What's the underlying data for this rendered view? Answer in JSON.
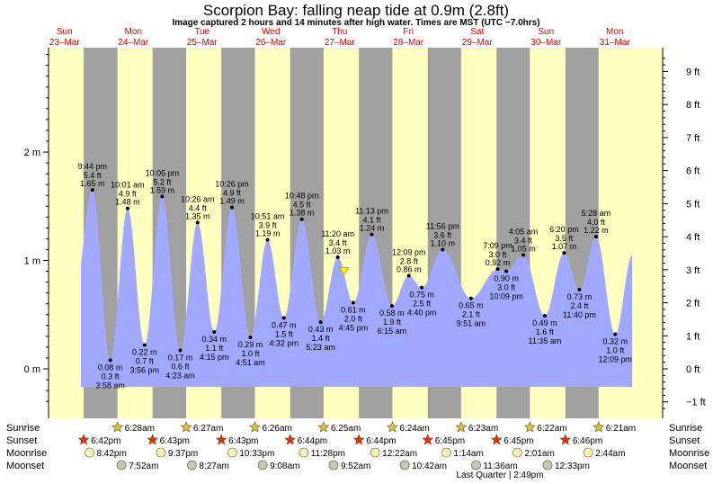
{
  "title": "Scorpion Bay: falling  neap tide at 0.9m (2.8ft)",
  "subtitle": "Image captured 2 hours and 14 minutes after high water. Times are MST (UTC −7.0hrs)",
  "colors": {
    "day": "#ffffc0",
    "night": "#a0a0a0",
    "tide": "#a0a8ff",
    "marker": "#ffff00",
    "day_label": "#e00000"
  },
  "days": [
    {
      "name": "Sun",
      "date": "23–Mar"
    },
    {
      "name": "Mon",
      "date": "24–Mar"
    },
    {
      "name": "Tue",
      "date": "25–Mar"
    },
    {
      "name": "Wed",
      "date": "26–Mar"
    },
    {
      "name": "Thu",
      "date": "27–Mar"
    },
    {
      "name": "Fri",
      "date": "28–Mar"
    },
    {
      "name": "Sat",
      "date": "29–Mar"
    },
    {
      "name": "Sun",
      "date": "30–Mar"
    },
    {
      "name": "Mon",
      "date": "31–Mar"
    }
  ],
  "chart_data": {
    "type": "area",
    "ylabel_left": "m",
    "ylabel_right": "ft",
    "left_ticks": [
      {
        "v": 0,
        "label": "0 m"
      },
      {
        "v": 1,
        "label": "1 m"
      },
      {
        "v": 2,
        "label": "2 m"
      }
    ],
    "right_ticks": [
      {
        "v": -1,
        "label": "−1 ft"
      },
      {
        "v": 0,
        "label": "0 ft"
      },
      {
        "v": 1,
        "label": "1 ft"
      },
      {
        "v": 2,
        "label": "2 ft"
      },
      {
        "v": 3,
        "label": "3 ft"
      },
      {
        "v": 4,
        "label": "4 ft"
      },
      {
        "v": 5,
        "label": "5 ft"
      },
      {
        "v": 6,
        "label": "6 ft"
      },
      {
        "v": 7,
        "label": "7 ft"
      },
      {
        "v": 8,
        "label": "8 ft"
      },
      {
        "v": 9,
        "label": "9 ft"
      }
    ],
    "ylim_m": [
      -0.35,
      3.0
    ],
    "now": {
      "t": "27–Mar 1:34pm",
      "m": 0.9
    },
    "extremes": [
      {
        "t": "23–Mar 9:44pm",
        "m": 1.65,
        "time": "9:44 pm",
        "ft": "5.4 ft",
        "label_m": "1.65 m",
        "type": "high"
      },
      {
        "t": "24–Mar 3:58am",
        "m": 0.08,
        "time": "3:58 am",
        "ft": "0.3 ft",
        "label_m": "0.08 m",
        "type": "low"
      },
      {
        "t": "24–Mar 10:01am",
        "m": 1.48,
        "time": "10:01 am",
        "ft": "4.9 ft",
        "label_m": "1.48 m",
        "type": "high"
      },
      {
        "t": "24–Mar 3:56pm",
        "m": 0.22,
        "time": "3:56 pm",
        "ft": "0.7 ft",
        "label_m": "0.22 m",
        "type": "low"
      },
      {
        "t": "24–Mar 10:05pm",
        "m": 1.59,
        "time": "10:05 pm",
        "ft": "5.2 ft",
        "label_m": "1.59 m",
        "type": "high"
      },
      {
        "t": "25–Mar 4:23am",
        "m": 0.17,
        "time": "4:23 am",
        "ft": "0.6 ft",
        "label_m": "0.17 m",
        "type": "low"
      },
      {
        "t": "25–Mar 10:26am",
        "m": 1.35,
        "time": "10:26 am",
        "ft": "4.4 ft",
        "label_m": "1.35 m",
        "type": "high"
      },
      {
        "t": "25–Mar 4:15pm",
        "m": 0.34,
        "time": "4:15 pm",
        "ft": "1.1 ft",
        "label_m": "0.34 m",
        "type": "low"
      },
      {
        "t": "25–Mar 10:26pm",
        "m": 1.49,
        "time": "10:26 pm",
        "ft": "4.9 ft",
        "label_m": "1.49 m",
        "type": "high"
      },
      {
        "t": "26–Mar 4:51am",
        "m": 0.29,
        "time": "4:51 am",
        "ft": "1.0 ft",
        "label_m": "0.29 m",
        "type": "low"
      },
      {
        "t": "26–Mar 10:51am",
        "m": 1.19,
        "time": "10:51 am",
        "ft": "3.9 ft",
        "label_m": "1.19 m",
        "type": "high"
      },
      {
        "t": "26–Mar 4:32pm",
        "m": 0.47,
        "time": "4:32 pm",
        "ft": "1.5 ft",
        "label_m": "0.47 m",
        "type": "low"
      },
      {
        "t": "26–Mar 10:48pm",
        "m": 1.38,
        "time": "10:48 pm",
        "ft": "4.5 ft",
        "label_m": "1.38 m",
        "type": "high"
      },
      {
        "t": "27–Mar 5:23am",
        "m": 0.43,
        "time": "5:23 am",
        "ft": "1.4 ft",
        "label_m": "0.43 m",
        "type": "low"
      },
      {
        "t": "27–Mar 11:20am",
        "m": 1.03,
        "time": "11:20 am",
        "ft": "3.4 ft",
        "label_m": "1.03 m",
        "type": "high"
      },
      {
        "t": "27–Mar 4:45pm",
        "m": 0.61,
        "time": "4:45 pm",
        "ft": "2.0 ft",
        "label_m": "0.61 m",
        "type": "low"
      },
      {
        "t": "27–Mar 11:13pm",
        "m": 1.24,
        "time": "11:13 pm",
        "ft": "4.1 ft",
        "label_m": "1.24 m",
        "type": "high"
      },
      {
        "t": "28–Mar 6:15am",
        "m": 0.58,
        "time": "6:15 am",
        "ft": "1.9 ft",
        "label_m": "0.58 m",
        "type": "low"
      },
      {
        "t": "28–Mar 12:09pm",
        "m": 0.86,
        "time": "12:09 pm",
        "ft": "2.8 ft",
        "label_m": "0.86 m",
        "type": "high"
      },
      {
        "t": "28–Mar 4:40pm",
        "m": 0.75,
        "time": "4:40 pm",
        "ft": "2.5 ft",
        "label_m": "0.75 m",
        "type": "low"
      },
      {
        "t": "28–Mar 11:56pm",
        "m": 1.1,
        "time": "11:56 pm",
        "ft": "3.6 ft",
        "label_m": "1.10 m",
        "type": "high"
      },
      {
        "t": "29–Mar 9:51am",
        "m": 0.65,
        "time": "9:51 am",
        "ft": "2.1 ft",
        "label_m": "0.65 m",
        "type": "low"
      },
      {
        "t": "29–Mar 7:09pm",
        "m": 0.92,
        "time": "7:09 pm",
        "ft": "3.0 ft",
        "label_m": "0.92 m",
        "type": "high"
      },
      {
        "t": "29–Mar 10:09pm",
        "m": 0.9,
        "time": "10:09 pm",
        "ft": "3.0 ft",
        "label_m": "0.90 m",
        "type": "low"
      },
      {
        "t": "30–Mar 4:05am",
        "m": 1.05,
        "time": "4:05 am",
        "ft": "3.4 ft",
        "label_m": "1.05 m",
        "type": "high"
      },
      {
        "t": "30–Mar 11:35am",
        "m": 0.49,
        "time": "11:35 am",
        "ft": "1.6 ft",
        "label_m": "0.49 m",
        "type": "low"
      },
      {
        "t": "30–Mar 6:20pm",
        "m": 1.07,
        "time": "6:20 pm",
        "ft": "3.5 ft",
        "label_m": "1.07 m",
        "type": "high"
      },
      {
        "t": "30–Mar 11:40pm",
        "m": 0.73,
        "time": "11:40 pm",
        "ft": "2.4 ft",
        "label_m": "0.73 m",
        "type": "low"
      },
      {
        "t": "31–Mar 5:28am",
        "m": 1.22,
        "time": "5:28 am",
        "ft": "4.0 ft",
        "label_m": "1.22 m",
        "type": "high"
      },
      {
        "t": "31–Mar 12:09pm",
        "m": 0.32,
        "time": "12:09 pm",
        "ft": "1.0 ft",
        "label_m": "0.32 m",
        "type": "low"
      }
    ]
  },
  "astro": {
    "labels": {
      "sunrise": "Sunrise",
      "sunset": "Sunset",
      "moonrise": "Moonrise",
      "moonset": "Moonset"
    },
    "sunrise": [
      {
        "t": "24–Mar 6:28am",
        "label": "6:28am"
      },
      {
        "t": "25–Mar 6:27am",
        "label": "6:27am"
      },
      {
        "t": "26–Mar 6:26am",
        "label": "6:26am"
      },
      {
        "t": "27–Mar 6:25am",
        "label": "6:25am"
      },
      {
        "t": "28–Mar 6:24am",
        "label": "6:24am"
      },
      {
        "t": "29–Mar 6:23am",
        "label": "6:23am"
      },
      {
        "t": "30–Mar 6:22am",
        "label": "6:22am"
      },
      {
        "t": "31–Mar 6:21am",
        "label": "6:21am"
      }
    ],
    "sunset": [
      {
        "t": "23–Mar 6:42pm",
        "label": "6:42pm"
      },
      {
        "t": "24–Mar 6:43pm",
        "label": "6:43pm"
      },
      {
        "t": "25–Mar 6:43pm",
        "label": "6:43pm"
      },
      {
        "t": "26–Mar 6:44pm",
        "label": "6:44pm"
      },
      {
        "t": "27–Mar 6:44pm",
        "label": "6:44pm"
      },
      {
        "t": "28–Mar 6:45pm",
        "label": "6:45pm"
      },
      {
        "t": "29–Mar 6:45pm",
        "label": "6:45pm"
      },
      {
        "t": "30–Mar 6:46pm",
        "label": "6:46pm"
      }
    ],
    "moonrise": [
      {
        "t": "23–Mar 8:42pm",
        "label": "8:42pm"
      },
      {
        "t": "24–Mar 9:37pm",
        "label": "9:37pm"
      },
      {
        "t": "25–Mar 10:33pm",
        "label": "10:33pm"
      },
      {
        "t": "26–Mar 11:28pm",
        "label": "11:28pm"
      },
      {
        "t": "28–Mar 12:22am",
        "label": "12:22am"
      },
      {
        "t": "29–Mar 1:14am",
        "label": "1:14am"
      },
      {
        "t": "30–Mar 2:01am",
        "label": "2:01am"
      },
      {
        "t": "31–Mar 2:44am",
        "label": "2:44am"
      }
    ],
    "moonset": [
      {
        "t": "24–Mar 7:52am",
        "label": "7:52am"
      },
      {
        "t": "25–Mar 8:27am",
        "label": "8:27am"
      },
      {
        "t": "26–Mar 9:08am",
        "label": "9:08am"
      },
      {
        "t": "27–Mar 9:52am",
        "label": "9:52am"
      },
      {
        "t": "28–Mar 10:42am",
        "label": "10:42am"
      },
      {
        "t": "29–Mar 11:36am",
        "label": "11:36am"
      },
      {
        "t": "30–Mar 12:33pm",
        "label": "12:33pm"
      }
    ],
    "moon_phase": {
      "label": "Last Quarter | 2:49pm"
    }
  }
}
